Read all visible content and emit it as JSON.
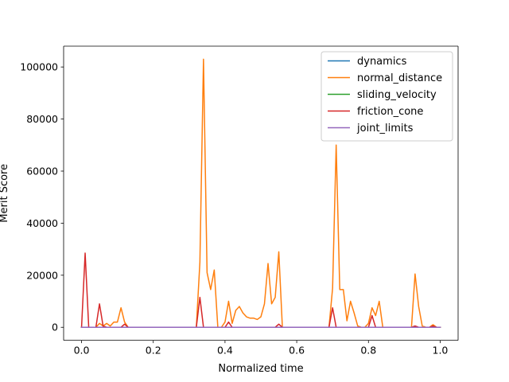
{
  "chart_data": {
    "type": "line",
    "title": "",
    "xlabel": "Normalized time",
    "ylabel": "Merit Score",
    "xlim": [
      -0.05,
      1.05
    ],
    "ylim": [
      -5000,
      108000
    ],
    "xticks": [
      0.0,
      0.2,
      0.4,
      0.6,
      0.8,
      1.0
    ],
    "xtick_labels": [
      "0.0",
      "0.2",
      "0.4",
      "0.6",
      "0.8",
      "1.0"
    ],
    "yticks": [
      0,
      20000,
      40000,
      60000,
      80000,
      100000
    ],
    "ytick_labels": [
      "0",
      "20000",
      "40000",
      "60000",
      "80000",
      "100000"
    ],
    "grid": false,
    "legend_position": "top-right",
    "series": [
      {
        "name": "dynamics",
        "color": "#1f77b4",
        "x": [
          0.0,
          1.0
        ],
        "y": [
          0,
          0
        ]
      },
      {
        "name": "normal_distance",
        "color": "#ff7f0e",
        "x": [
          0.0,
          0.04,
          0.05,
          0.06,
          0.07,
          0.08,
          0.09,
          0.1,
          0.11,
          0.12,
          0.13,
          0.2,
          0.32,
          0.33,
          0.34,
          0.35,
          0.36,
          0.37,
          0.38,
          0.39,
          0.4,
          0.41,
          0.42,
          0.43,
          0.44,
          0.45,
          0.46,
          0.47,
          0.48,
          0.49,
          0.5,
          0.51,
          0.52,
          0.53,
          0.54,
          0.55,
          0.56,
          0.6,
          0.69,
          0.7,
          0.71,
          0.72,
          0.73,
          0.74,
          0.75,
          0.76,
          0.77,
          0.78,
          0.79,
          0.8,
          0.81,
          0.82,
          0.83,
          0.84,
          0.9,
          0.92,
          0.93,
          0.94,
          0.95,
          0.96,
          0.97,
          0.98,
          0.99,
          1.0
        ],
        "y": [
          0,
          0,
          1500,
          500,
          1500,
          500,
          2000,
          2000,
          7500,
          2000,
          0,
          0,
          0,
          25000,
          103000,
          21000,
          14500,
          22000,
          0,
          0,
          2000,
          10000,
          1500,
          6500,
          8000,
          5500,
          4000,
          3500,
          3500,
          3000,
          4000,
          9000,
          24500,
          9000,
          11500,
          29000,
          0,
          0,
          0,
          15000,
          70000,
          14500,
          14500,
          2500,
          10000,
          5500,
          500,
          0,
          0,
          1500,
          7500,
          4500,
          10000,
          0,
          0,
          0,
          20500,
          8000,
          500,
          0,
          0,
          1000,
          0,
          0
        ]
      },
      {
        "name": "sliding_velocity",
        "color": "#2ca02c",
        "x": [
          0.0,
          1.0
        ],
        "y": [
          0,
          0
        ]
      },
      {
        "name": "friction_cone",
        "color": "#d62728",
        "x": [
          0.0,
          0.01,
          0.02,
          0.04,
          0.05,
          0.06,
          0.07,
          0.11,
          0.12,
          0.13,
          0.32,
          0.33,
          0.34,
          0.35,
          0.4,
          0.41,
          0.42,
          0.54,
          0.55,
          0.56,
          0.69,
          0.7,
          0.71,
          0.8,
          0.81,
          0.82,
          0.92,
          0.93,
          0.94,
          0.97,
          0.98,
          0.99,
          1.0
        ],
        "y": [
          0,
          28500,
          0,
          0,
          9000,
          500,
          0,
          0,
          1200,
          0,
          0,
          11500,
          0,
          0,
          0,
          2000,
          0,
          0,
          1200,
          0,
          0,
          7500,
          0,
          0,
          4500,
          0,
          0,
          500,
          0,
          0,
          500,
          0,
          0
        ]
      },
      {
        "name": "joint_limits",
        "color": "#9467bd",
        "x": [
          0.0,
          1.0
        ],
        "y": [
          0,
          0
        ]
      }
    ]
  }
}
